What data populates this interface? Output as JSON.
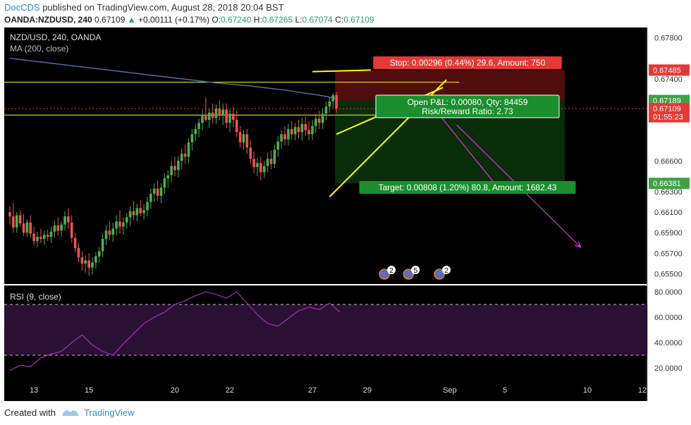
{
  "header": {
    "author": "DocCDS",
    "published_text": "published on TradingView.com, August 28, 2018 20:04 BST",
    "symbol": "OANDA:NZDUSD, 240",
    "last": "0.67109",
    "change": "+0.00111 (+0.17%)",
    "o_label": "O:",
    "o": "0.67240",
    "h_label": "H:",
    "h": "0.67265",
    "l_label": "L:",
    "l": "0.67074",
    "c_label": "C:",
    "c": "0.67109"
  },
  "footer": {
    "created_with": "Created with",
    "brand": "TradingView"
  },
  "colors": {
    "background": "#000000",
    "up": "#4caf50",
    "down": "#ef5350",
    "ma": "#4a6fa5",
    "rsi": "#9c27b0",
    "trendlines": "#ffff00",
    "projection_arrows": "#cc33cc",
    "stop_zone": "#5a0d0d",
    "target_zone": "#0a2e0a"
  },
  "chart_data": [
    {
      "type": "candlestick",
      "title": "NZD/USD, 240, OANDA",
      "indicator": "MA (200, close)",
      "ylim": [
        0.654,
        0.679
      ],
      "y_ticks": [
        "0.67800",
        "0.67400",
        "0.66600",
        "0.66300",
        "0.66100",
        "0.65900",
        "0.65700",
        "0.65500"
      ],
      "x_ticks": [
        "13",
        "15",
        "20",
        "22",
        "27",
        "29",
        "Sep",
        "5",
        "10",
        "12"
      ],
      "x_tick_index": [
        7,
        23,
        48,
        64,
        88,
        104,
        128,
        144,
        168,
        184
      ],
      "candles": [
        [
          0.661,
          0.6616,
          0.6598,
          0.6606
        ],
        [
          0.6606,
          0.6619,
          0.659,
          0.6595
        ],
        [
          0.6595,
          0.661,
          0.659,
          0.6607
        ],
        [
          0.6607,
          0.6612,
          0.6596,
          0.6599
        ],
        [
          0.6599,
          0.6608,
          0.6587,
          0.659
        ],
        [
          0.659,
          0.6603,
          0.6586,
          0.66
        ],
        [
          0.66,
          0.6607,
          0.6585,
          0.6589
        ],
        [
          0.6589,
          0.6596,
          0.6578,
          0.6582
        ],
        [
          0.6582,
          0.6591,
          0.6576,
          0.6586
        ],
        [
          0.6586,
          0.6594,
          0.658,
          0.6584
        ],
        [
          0.6584,
          0.6592,
          0.6578,
          0.6588
        ],
        [
          0.6588,
          0.6593,
          0.6582,
          0.6586
        ],
        [
          0.6586,
          0.6596,
          0.658,
          0.6591
        ],
        [
          0.6591,
          0.6602,
          0.6585,
          0.6597
        ],
        [
          0.6597,
          0.6605,
          0.6587,
          0.6592
        ],
        [
          0.6592,
          0.6601,
          0.6586,
          0.6598
        ],
        [
          0.6598,
          0.6611,
          0.6592,
          0.6606
        ],
        [
          0.6606,
          0.6614,
          0.6594,
          0.66
        ],
        [
          0.66,
          0.6607,
          0.658,
          0.6585
        ],
        [
          0.6585,
          0.659,
          0.6571,
          0.6575
        ],
        [
          0.6575,
          0.658,
          0.6561,
          0.6566
        ],
        [
          0.6566,
          0.6572,
          0.6553,
          0.656
        ],
        [
          0.656,
          0.6568,
          0.6551,
          0.6563
        ],
        [
          0.6563,
          0.657,
          0.6548,
          0.6556
        ],
        [
          0.6556,
          0.6566,
          0.6549,
          0.6561
        ],
        [
          0.6561,
          0.6571,
          0.6555,
          0.6567
        ],
        [
          0.6567,
          0.6576,
          0.6561,
          0.6572
        ],
        [
          0.6572,
          0.6589,
          0.6566,
          0.6584
        ],
        [
          0.6584,
          0.6597,
          0.6578,
          0.6592
        ],
        [
          0.6592,
          0.6601,
          0.6583,
          0.6588
        ],
        [
          0.6588,
          0.66,
          0.6581,
          0.6594
        ],
        [
          0.6594,
          0.6607,
          0.6587,
          0.6601
        ],
        [
          0.6601,
          0.6612,
          0.6589,
          0.6596
        ],
        [
          0.6596,
          0.6605,
          0.6588,
          0.66
        ],
        [
          0.66,
          0.6609,
          0.6594,
          0.6605
        ],
        [
          0.6605,
          0.6616,
          0.6596,
          0.6611
        ],
        [
          0.6611,
          0.6621,
          0.6602,
          0.6607
        ],
        [
          0.6607,
          0.6618,
          0.6601,
          0.6614
        ],
        [
          0.6614,
          0.6622,
          0.6606,
          0.6609
        ],
        [
          0.6609,
          0.6618,
          0.6603,
          0.6612
        ],
        [
          0.6612,
          0.6625,
          0.6606,
          0.662
        ],
        [
          0.662,
          0.6633,
          0.6613,
          0.6628
        ],
        [
          0.6628,
          0.6638,
          0.662,
          0.6633
        ],
        [
          0.6633,
          0.6641,
          0.6621,
          0.6626
        ],
        [
          0.6626,
          0.6638,
          0.6619,
          0.6634
        ],
        [
          0.6634,
          0.6648,
          0.6628,
          0.6643
        ],
        [
          0.6643,
          0.6651,
          0.6634,
          0.6646
        ],
        [
          0.6646,
          0.666,
          0.6639,
          0.6655
        ],
        [
          0.6655,
          0.6664,
          0.6645,
          0.6651
        ],
        [
          0.6651,
          0.6665,
          0.6644,
          0.666
        ],
        [
          0.666,
          0.6672,
          0.6652,
          0.6667
        ],
        [
          0.6667,
          0.6676,
          0.6657,
          0.6664
        ],
        [
          0.6664,
          0.6682,
          0.6658,
          0.6678
        ],
        [
          0.6678,
          0.6691,
          0.667,
          0.6686
        ],
        [
          0.6686,
          0.6696,
          0.6679,
          0.6691
        ],
        [
          0.6691,
          0.6701,
          0.6683,
          0.6697
        ],
        [
          0.6697,
          0.671,
          0.669,
          0.6705
        ],
        [
          0.6705,
          0.6722,
          0.6698,
          0.67
        ],
        [
          0.67,
          0.6711,
          0.6692,
          0.6707
        ],
        [
          0.6707,
          0.6716,
          0.6697,
          0.6702
        ],
        [
          0.6702,
          0.6715,
          0.6696,
          0.6711
        ],
        [
          0.6711,
          0.6719,
          0.67,
          0.6704
        ],
        [
          0.6704,
          0.6716,
          0.6695,
          0.671
        ],
        [
          0.671,
          0.6716,
          0.6692,
          0.6697
        ],
        [
          0.6697,
          0.671,
          0.6688,
          0.6706
        ],
        [
          0.6706,
          0.6713,
          0.6693,
          0.67
        ],
        [
          0.67,
          0.6709,
          0.6683,
          0.6688
        ],
        [
          0.6688,
          0.6694,
          0.6673,
          0.6678
        ],
        [
          0.6678,
          0.669,
          0.6671,
          0.6686
        ],
        [
          0.6686,
          0.6691,
          0.6667,
          0.6673
        ],
        [
          0.6673,
          0.668,
          0.6657,
          0.6662
        ],
        [
          0.6662,
          0.6669,
          0.6648,
          0.6654
        ],
        [
          0.6654,
          0.6663,
          0.6645,
          0.6658
        ],
        [
          0.6658,
          0.6664,
          0.6641,
          0.6649
        ],
        [
          0.6649,
          0.666,
          0.6643,
          0.6655
        ],
        [
          0.6655,
          0.6668,
          0.6649,
          0.6662
        ],
        [
          0.6662,
          0.667,
          0.6652,
          0.6657
        ],
        [
          0.6657,
          0.6676,
          0.6653,
          0.6671
        ],
        [
          0.6671,
          0.6684,
          0.6664,
          0.6679
        ],
        [
          0.6679,
          0.669,
          0.6672,
          0.6686
        ],
        [
          0.6686,
          0.6694,
          0.6675,
          0.6681
        ],
        [
          0.6681,
          0.6696,
          0.6675,
          0.6691
        ],
        [
          0.6691,
          0.6699,
          0.6681,
          0.6686
        ],
        [
          0.6686,
          0.6697,
          0.668,
          0.6693
        ],
        [
          0.6693,
          0.67,
          0.6682,
          0.6688
        ],
        [
          0.6688,
          0.6702,
          0.668,
          0.6696
        ],
        [
          0.6696,
          0.6703,
          0.6684,
          0.669
        ],
        [
          0.669,
          0.6699,
          0.668,
          0.6686
        ],
        [
          0.6686,
          0.67,
          0.668,
          0.6694
        ],
        [
          0.6694,
          0.6706,
          0.6687,
          0.6701
        ],
        [
          0.6701,
          0.6709,
          0.6691,
          0.6697
        ],
        [
          0.6697,
          0.6711,
          0.6691,
          0.6706
        ],
        [
          0.6706,
          0.6718,
          0.67,
          0.6713
        ],
        [
          0.6713,
          0.6722,
          0.6707,
          0.6718
        ],
        [
          0.6718,
          0.6726,
          0.6712,
          0.6724
        ],
        [
          0.6724,
          0.6727,
          0.6707,
          0.6711
        ]
      ],
      "ma200": [
        [
          0,
          0.676
        ],
        [
          10,
          0.6756
        ],
        [
          20,
          0.6752
        ],
        [
          30,
          0.6748
        ],
        [
          40,
          0.6744
        ],
        [
          50,
          0.674
        ],
        [
          60,
          0.6736
        ],
        [
          70,
          0.6733
        ],
        [
          80,
          0.6729
        ],
        [
          90,
          0.6724
        ],
        [
          95,
          0.6721
        ]
      ],
      "price_lines": {
        "last_price": 0.67109
      },
      "price_labels": [
        {
          "text": "0.67485",
          "value": 0.67485,
          "color": "#e53935"
        },
        {
          "text": "0.67189",
          "value": 0.67189,
          "color": "#43a047"
        },
        {
          "text": "0.67109",
          "value": 0.67109,
          "color": "#e53935"
        },
        {
          "text": "01:55:23",
          "value": 0.6703,
          "color": "#e53935"
        },
        {
          "text": "0.66381",
          "value": 0.66381,
          "color": "#43a047"
        }
      ],
      "position": {
        "entry": 0.67189,
        "stop": 0.67485,
        "target": 0.66381,
        "stop_text": "Stop: 0.00296 (0.44%) 29.6, Amount: 750",
        "open_pl_text": "Open P&L: 0.00080, Qty: 84459",
        "rr_text": "Risk/Reward Ratio: 2.73",
        "target_text": "Target: 0.00808 (1.20%) 80.8, Amount: 1682.43"
      },
      "horizontal_levels": [
        0.67367,
        0.67047
      ],
      "trendlines": [
        [
          [
            88,
            0.6747
          ],
          [
            105,
            0.67485
          ]
        ],
        [
          [
            95,
            0.6686
          ],
          [
            126,
            0.67315
          ]
        ],
        [
          [
            93,
            0.6625
          ],
          [
            127,
            0.6739
          ]
        ]
      ],
      "arrows": [
        [
          [
            123,
            0.6713
          ],
          [
            142,
            0.6634
          ]
        ],
        [
          [
            130,
            0.6695
          ],
          [
            166,
            0.6576
          ]
        ]
      ],
      "events": [
        {
          "label": "2",
          "index": 111
        },
        {
          "label": "5",
          "index": 118
        },
        {
          "label": "2",
          "index": 127
        }
      ]
    },
    {
      "type": "line",
      "title": "RSI (9, close)",
      "ylim": [
        10,
        85
      ],
      "y_ticks": [
        "80.0000",
        "60.0000",
        "40.0000",
        "20.0000"
      ],
      "bands": [
        70,
        30
      ],
      "x": [
        0,
        3,
        6,
        9,
        12,
        15,
        18,
        21,
        24,
        27,
        30,
        33,
        36,
        39,
        42,
        45,
        48,
        51,
        54,
        57,
        60,
        63,
        66,
        69,
        72,
        75,
        78,
        81,
        84,
        87,
        90,
        93,
        96
      ],
      "values": [
        18,
        22,
        21,
        28,
        31,
        33,
        40,
        46,
        38,
        33,
        30,
        39,
        47,
        55,
        60,
        64,
        70,
        73,
        77,
        80,
        78,
        75,
        80,
        71,
        62,
        55,
        53,
        59,
        65,
        68,
        66,
        71,
        64
      ]
    }
  ]
}
